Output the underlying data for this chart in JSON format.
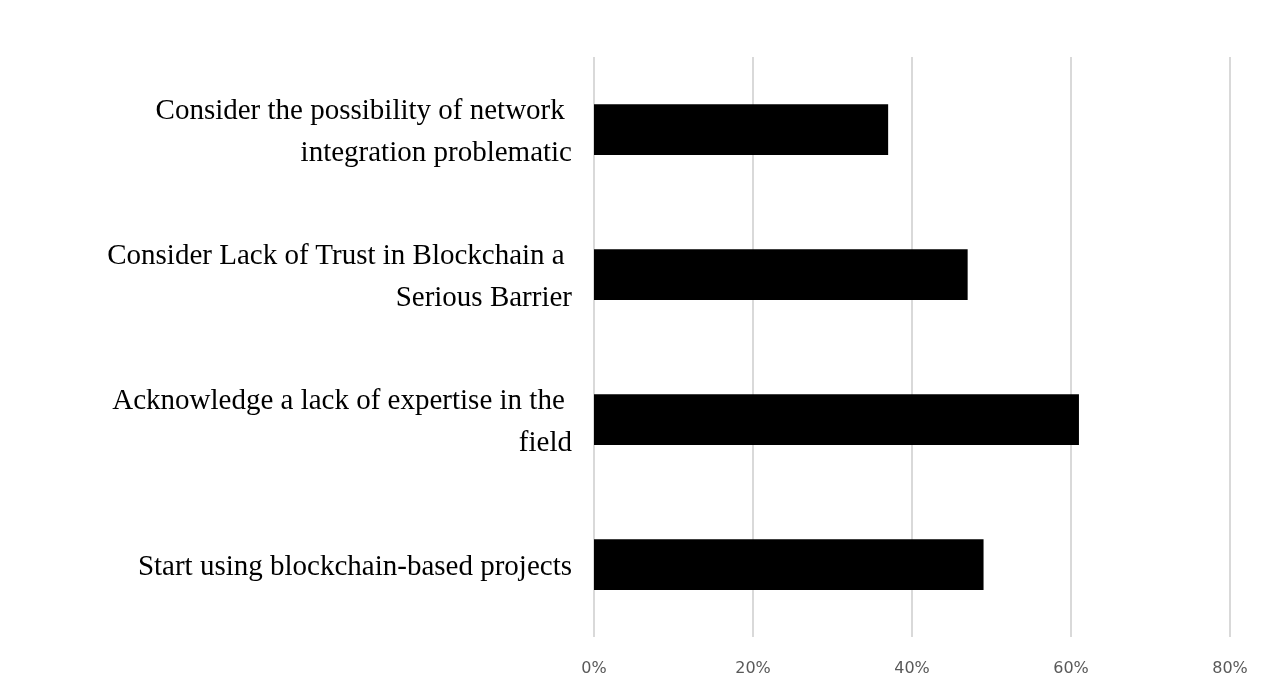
{
  "chart_data": {
    "type": "bar",
    "orientation": "horizontal",
    "categories": [
      "Consider the possibility of network integration problematic",
      "Consider Lack of Trust in Blockchain a Serious Barrier",
      "Acknowledge a lack of expertise in the field",
      "Start using blockchain-based projects"
    ],
    "values": [
      37,
      47,
      61,
      49
    ],
    "color": "#000000",
    "xlim": [
      0,
      80
    ],
    "xticks": [
      {
        "value": 0,
        "label": "0%"
      },
      {
        "value": 20,
        "label": "20%"
      },
      {
        "value": 40,
        "label": "40%"
      },
      {
        "value": 60,
        "label": "60%"
      },
      {
        "value": 80,
        "label": "80%"
      }
    ],
    "grid": "x"
  }
}
